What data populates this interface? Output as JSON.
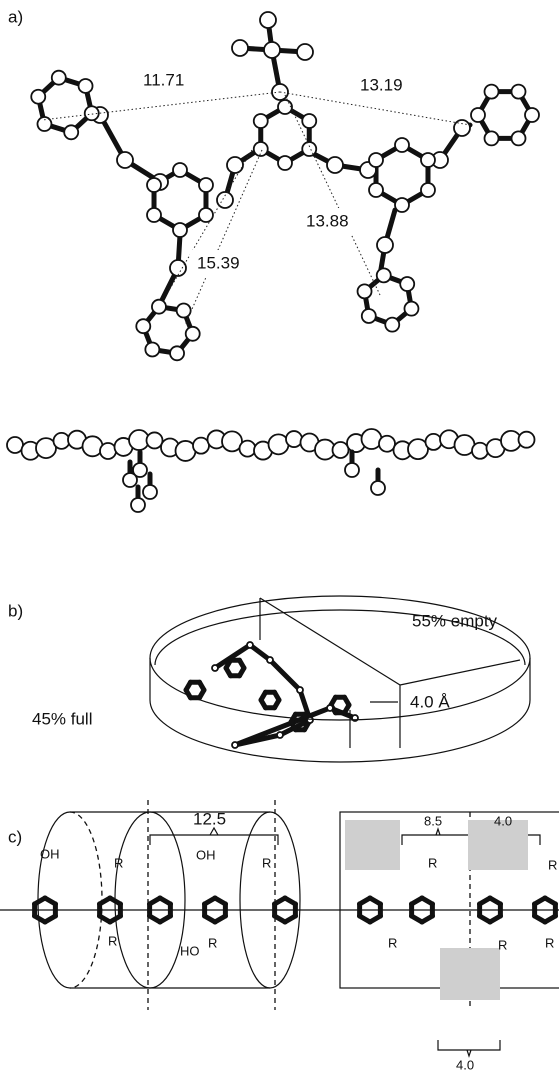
{
  "panel_a": {
    "label": "a)",
    "distances": [
      "11.71",
      "13.19",
      "13.88",
      "15.39"
    ]
  },
  "panel_b": {
    "label": "b)",
    "empty": "55% empty",
    "full": "45% full",
    "thickness": "4.0 Å"
  },
  "panel_c": {
    "label": "c)",
    "spacing": "12.5",
    "spacing_right": "8.5",
    "spacing_top": "4.0",
    "spacing_bottom": "4.0",
    "hydroxyls": [
      "OH",
      "OH",
      "HO"
    ],
    "substituents": [
      "R",
      "R",
      "R",
      "R",
      "R",
      "R",
      "R",
      "R",
      "R"
    ]
  }
}
